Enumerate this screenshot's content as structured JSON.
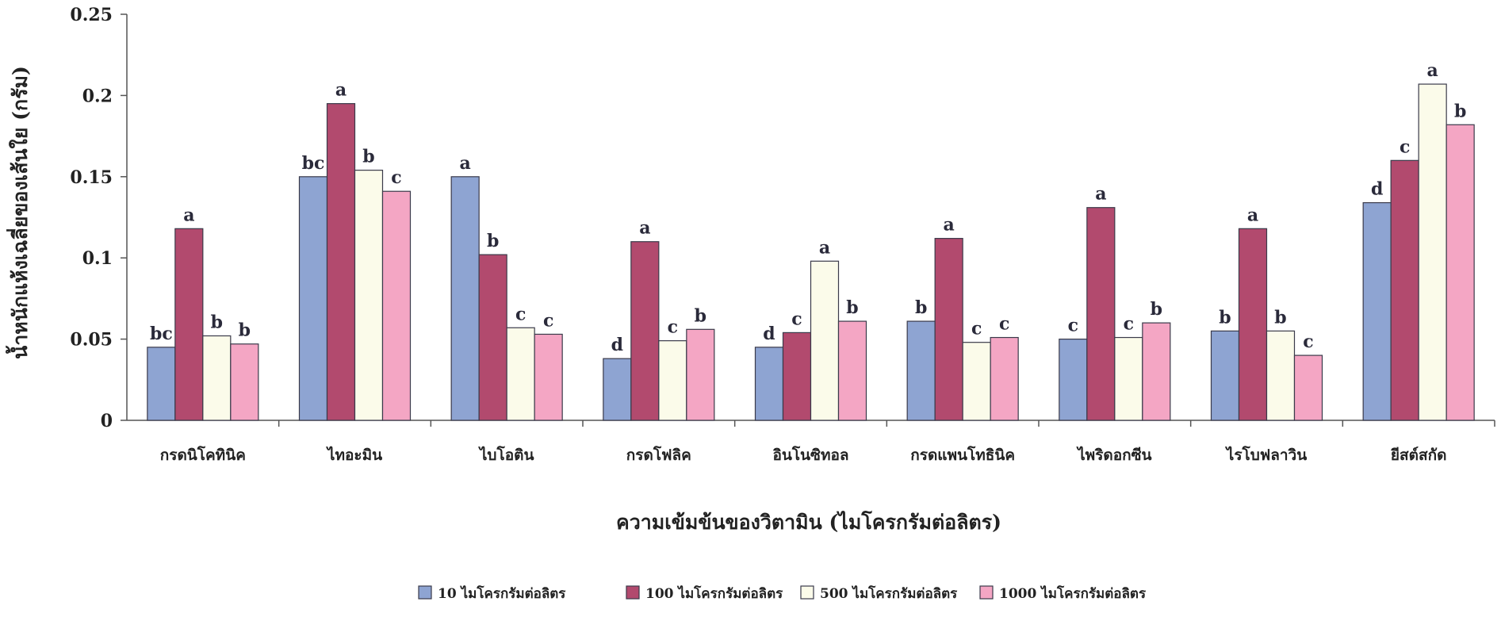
{
  "chart_data": {
    "type": "bar",
    "title": "",
    "xlabel": "ความเข้มข้นของวิตามิน (ไมโครกรัมต่อลิตร)",
    "ylabel": "น้ำหนักแห้งเฉลี่ยของเส้นใย (กรัม)",
    "ylim": [
      0,
      0.25
    ],
    "yticks": [
      0,
      0.05,
      0.1,
      0.15,
      0.2,
      0.25
    ],
    "ytick_labels": [
      "0",
      "0.05",
      "0.1",
      "0.15",
      "0.2",
      "0.25"
    ],
    "grid": false,
    "legend_position": "bottom",
    "categories": [
      "กรดนิโคทินิค",
      "ไทอะมิน",
      "ไบโอติน",
      "กรดโฟลิค",
      "อินโนซิทอล",
      "กรดแพนโทธินิค",
      "ไพริดอกซีน",
      "ไรโบฟลาวิน",
      "ยีสต์สกัด"
    ],
    "series": [
      {
        "name": "10 ไมโครกรัมต่อลิตร",
        "color": "#8ea4d2",
        "values": [
          0.045,
          0.15,
          0.15,
          0.038,
          0.045,
          0.061,
          0.05,
          0.055,
          0.134
        ],
        "letters": [
          "bc",
          "bc",
          "a",
          "d",
          "d",
          "b",
          "c",
          "b",
          "d"
        ]
      },
      {
        "name": "100 ไมโครกรัมต่อลิตร",
        "color": "#b24a6e",
        "values": [
          0.118,
          0.195,
          0.102,
          0.11,
          0.054,
          0.112,
          0.131,
          0.118,
          0.16
        ],
        "letters": [
          "a",
          "a",
          "b",
          "a",
          "c",
          "a",
          "a",
          "a",
          "c"
        ]
      },
      {
        "name": "500 ไมโครกรัมต่อลิตร",
        "color": "#fbfbea",
        "values": [
          0.052,
          0.154,
          0.057,
          0.049,
          0.098,
          0.048,
          0.051,
          0.055,
          0.207
        ],
        "letters": [
          "b",
          "b",
          "c",
          "c",
          "a",
          "c",
          "c",
          "b",
          "a"
        ]
      },
      {
        "name": "1000 ไมโครกรัมต่อลิตร",
        "color": "#f4a6c4",
        "values": [
          0.047,
          0.141,
          0.053,
          0.056,
          0.061,
          0.051,
          0.06,
          0.04,
          0.182
        ],
        "letters": [
          "b",
          "c",
          "c",
          "b",
          "b",
          "c",
          "b",
          "c",
          "b"
        ]
      }
    ]
  }
}
